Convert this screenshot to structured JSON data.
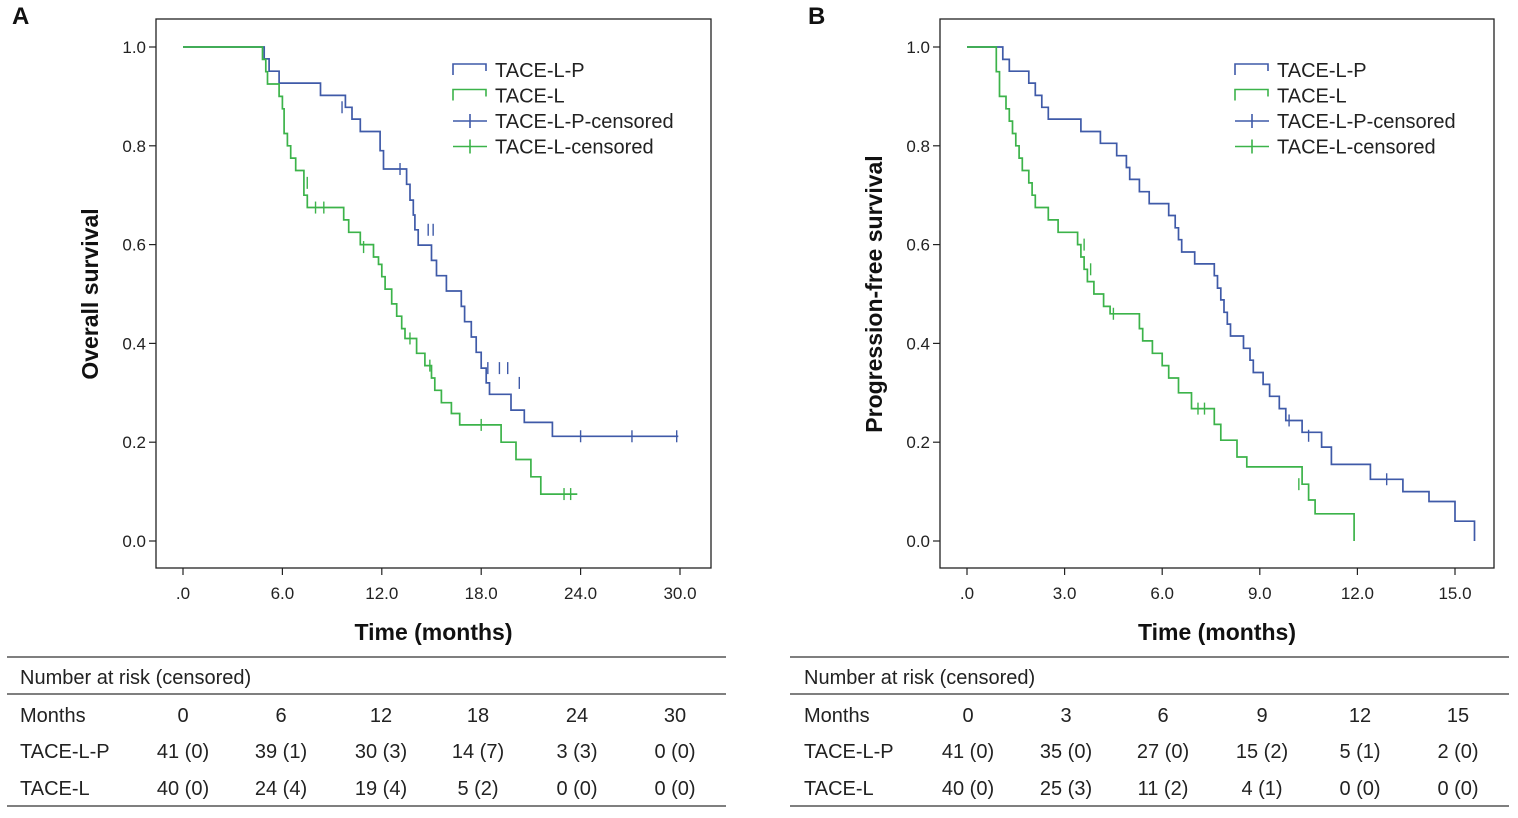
{
  "colors": {
    "tace_l_p": "#3f5aa8",
    "tace_l": "#3cb34a",
    "axis": "#222222"
  },
  "legend_labels": [
    "TACE-L-P",
    "TACE-L",
    "TACE-L-P-censored",
    "TACE-L-censored"
  ],
  "chart_data": [
    {
      "type": "line",
      "panel": "A",
      "ylabel": "Overall survival",
      "xlabel": "Time (months)",
      "xlim": [
        0,
        30
      ],
      "ylim": [
        0,
        1
      ],
      "x_ticks": [
        0,
        6,
        12,
        18,
        24,
        30
      ],
      "x_tick_labels": [
        ".0",
        "6.0",
        "12.0",
        "18.0",
        "24.0",
        "30.0"
      ],
      "y_ticks": [
        0,
        0.2,
        0.4,
        0.6,
        0.8,
        1.0
      ],
      "y_tick_labels": [
        "0.0",
        "0.2",
        "0.4",
        "0.6",
        "0.8",
        "1.0"
      ],
      "legend_position": "top-right",
      "series": [
        {
          "name": "TACE-L-P",
          "steps": [
            [
              0,
              1.0
            ],
            [
              4.9,
              0.976
            ],
            [
              5.2,
              0.951
            ],
            [
              5.8,
              0.927
            ],
            [
              8.3,
              0.902
            ],
            [
              9.8,
              0.878
            ],
            [
              10.2,
              0.854
            ],
            [
              10.7,
              0.829
            ],
            [
              11.9,
              0.79
            ],
            [
              12.1,
              0.753
            ],
            [
              13.5,
              0.722
            ],
            [
              13.7,
              0.69
            ],
            [
              13.9,
              0.66
            ],
            [
              14.0,
              0.63
            ],
            [
              14.2,
              0.599
            ],
            [
              15.0,
              0.568
            ],
            [
              15.3,
              0.537
            ],
            [
              15.9,
              0.506
            ],
            [
              16.8,
              0.475
            ],
            [
              17.0,
              0.444
            ],
            [
              17.4,
              0.413
            ],
            [
              17.7,
              0.382
            ],
            [
              18.0,
              0.35
            ],
            [
              18.3,
              0.32
            ],
            [
              18.5,
              0.297
            ],
            [
              19.8,
              0.265
            ],
            [
              20.6,
              0.24
            ],
            [
              22.3,
              0.212
            ]
          ],
          "end": 29.9,
          "censored": [
            [
              9.6,
              0.878
            ],
            [
              13.1,
              0.753
            ],
            [
              14.8,
              0.63
            ],
            [
              15.1,
              0.63
            ],
            [
              18.4,
              0.35
            ],
            [
              19.1,
              0.35
            ],
            [
              19.6,
              0.35
            ],
            [
              20.3,
              0.32
            ],
            [
              24.0,
              0.212
            ],
            [
              27.1,
              0.212
            ],
            [
              29.8,
              0.212
            ]
          ]
        },
        {
          "name": "TACE-L",
          "steps": [
            [
              0,
              1.0
            ],
            [
              4.8,
              0.975
            ],
            [
              5.0,
              0.95
            ],
            [
              5.1,
              0.925
            ],
            [
              5.8,
              0.9
            ],
            [
              6.0,
              0.875
            ],
            [
              6.1,
              0.825
            ],
            [
              6.3,
              0.8
            ],
            [
              6.5,
              0.775
            ],
            [
              6.8,
              0.75
            ],
            [
              7.3,
              0.7
            ],
            [
              7.5,
              0.675
            ],
            [
              9.7,
              0.65
            ],
            [
              10.0,
              0.625
            ],
            [
              10.7,
              0.6
            ],
            [
              11.5,
              0.575
            ],
            [
              11.8,
              0.56
            ],
            [
              12.0,
              0.535
            ],
            [
              12.2,
              0.51
            ],
            [
              12.6,
              0.48
            ],
            [
              12.9,
              0.455
            ],
            [
              13.2,
              0.43
            ],
            [
              13.4,
              0.41
            ],
            [
              14.1,
              0.38
            ],
            [
              14.6,
              0.355
            ],
            [
              15.0,
              0.33
            ],
            [
              15.2,
              0.305
            ],
            [
              15.6,
              0.28
            ],
            [
              16.2,
              0.258
            ],
            [
              16.7,
              0.235
            ],
            [
              19.2,
              0.2
            ],
            [
              20.1,
              0.165
            ],
            [
              21.0,
              0.13
            ],
            [
              21.6,
              0.095
            ]
          ],
          "end": 23.8,
          "censored": [
            [
              7.5,
              0.725
            ],
            [
              8.0,
              0.675
            ],
            [
              8.5,
              0.675
            ],
            [
              10.9,
              0.595
            ],
            [
              13.7,
              0.41
            ],
            [
              14.9,
              0.355
            ],
            [
              18.0,
              0.235
            ],
            [
              23.0,
              0.095
            ],
            [
              23.4,
              0.095
            ]
          ]
        }
      ]
    },
    {
      "type": "line",
      "panel": "B",
      "ylabel": "Progression-free survival",
      "xlabel": "Time (months)",
      "xlim": [
        0,
        15.6
      ],
      "ylim": [
        0,
        1
      ],
      "x_ticks": [
        0,
        3,
        6,
        9,
        12,
        15
      ],
      "x_tick_labels": [
        ".0",
        "3.0",
        "6.0",
        "9.0",
        "12.0",
        "15.0"
      ],
      "y_ticks": [
        0,
        0.2,
        0.4,
        0.6,
        0.8,
        1.0
      ],
      "y_tick_labels": [
        "0.0",
        "0.2",
        "0.4",
        "0.6",
        "0.8",
        "1.0"
      ],
      "legend_position": "top-right",
      "series": [
        {
          "name": "TACE-L-P",
          "steps": [
            [
              0,
              1.0
            ],
            [
              1.1,
              0.975
            ],
            [
              1.3,
              0.951
            ],
            [
              1.9,
              0.927
            ],
            [
              2.1,
              0.902
            ],
            [
              2.3,
              0.878
            ],
            [
              2.5,
              0.854
            ],
            [
              3.5,
              0.829
            ],
            [
              4.1,
              0.805
            ],
            [
              4.6,
              0.78
            ],
            [
              4.9,
              0.756
            ],
            [
              5.0,
              0.732
            ],
            [
              5.3,
              0.707
            ],
            [
              5.6,
              0.683
            ],
            [
              6.2,
              0.659
            ],
            [
              6.4,
              0.634
            ],
            [
              6.5,
              0.61
            ],
            [
              6.6,
              0.585
            ],
            [
              7.0,
              0.561
            ],
            [
              7.6,
              0.537
            ],
            [
              7.7,
              0.512
            ],
            [
              7.8,
              0.488
            ],
            [
              7.9,
              0.463
            ],
            [
              8.0,
              0.439
            ],
            [
              8.1,
              0.415
            ],
            [
              8.5,
              0.39
            ],
            [
              8.7,
              0.366
            ],
            [
              8.8,
              0.341
            ],
            [
              9.1,
              0.317
            ],
            [
              9.3,
              0.293
            ],
            [
              9.6,
              0.268
            ],
            [
              9.8,
              0.244
            ],
            [
              10.3,
              0.22
            ],
            [
              10.9,
              0.19
            ],
            [
              11.2,
              0.155
            ],
            [
              12.4,
              0.125
            ],
            [
              13.4,
              0.1
            ],
            [
              14.2,
              0.08
            ],
            [
              15.0,
              0.04
            ],
            [
              15.6,
              0.0
            ]
          ],
          "end": 15.6,
          "censored": [
            [
              9.9,
              0.244
            ],
            [
              10.5,
              0.213
            ],
            [
              12.9,
              0.125
            ]
          ]
        },
        {
          "name": "TACE-L",
          "steps": [
            [
              0,
              1.0
            ],
            [
              0.9,
              0.95
            ],
            [
              1.0,
              0.9
            ],
            [
              1.2,
              0.875
            ],
            [
              1.3,
              0.85
            ],
            [
              1.4,
              0.825
            ],
            [
              1.5,
              0.8
            ],
            [
              1.6,
              0.775
            ],
            [
              1.7,
              0.75
            ],
            [
              1.9,
              0.725
            ],
            [
              2.0,
              0.7
            ],
            [
              2.1,
              0.675
            ],
            [
              2.5,
              0.65
            ],
            [
              2.8,
              0.625
            ],
            [
              3.4,
              0.6
            ],
            [
              3.5,
              0.575
            ],
            [
              3.6,
              0.55
            ],
            [
              3.7,
              0.525
            ],
            [
              3.9,
              0.5
            ],
            [
              4.2,
              0.475
            ],
            [
              4.4,
              0.46
            ],
            [
              5.3,
              0.43
            ],
            [
              5.4,
              0.405
            ],
            [
              5.7,
              0.38
            ],
            [
              6.0,
              0.355
            ],
            [
              6.2,
              0.33
            ],
            [
              6.5,
              0.3
            ],
            [
              6.9,
              0.268
            ],
            [
              7.6,
              0.236
            ],
            [
              7.8,
              0.204
            ],
            [
              8.3,
              0.17
            ],
            [
              8.6,
              0.15
            ],
            [
              10.3,
              0.115
            ],
            [
              10.5,
              0.083
            ],
            [
              10.7,
              0.055
            ],
            [
              11.9,
              0.0
            ]
          ],
          "end": 11.9,
          "censored": [
            [
              3.6,
              0.6
            ],
            [
              3.8,
              0.55
            ],
            [
              4.5,
              0.46
            ],
            [
              7.1,
              0.268
            ],
            [
              7.3,
              0.268
            ],
            [
              10.2,
              0.115
            ]
          ]
        }
      ]
    }
  ],
  "risk_tables": [
    {
      "title": "Number at risk (censored)",
      "header": [
        "Months",
        "0",
        "6",
        "12",
        "18",
        "24",
        "30"
      ],
      "rows": [
        [
          "TACE-L-P",
          "41 (0)",
          "39 (1)",
          "30 (3)",
          "14 (7)",
          "3 (3)",
          "0 (0)"
        ],
        [
          "TACE-L",
          "40 (0)",
          "24 (4)",
          "19 (4)",
          "5 (2)",
          "0 (0)",
          "0 (0)"
        ]
      ]
    },
    {
      "title": "Number at risk (censored)",
      "header": [
        "Months",
        "0",
        "3",
        "6",
        "9",
        "12",
        "15"
      ],
      "rows": [
        [
          "TACE-L-P",
          "41 (0)",
          "35 (0)",
          "27 (0)",
          "15 (2)",
          "5 (1)",
          "2 (0)"
        ],
        [
          "TACE-L",
          "40 (0)",
          "25 (3)",
          "11 (2)",
          "4 (1)",
          "0 (0)",
          "0 (0)"
        ]
      ]
    }
  ]
}
